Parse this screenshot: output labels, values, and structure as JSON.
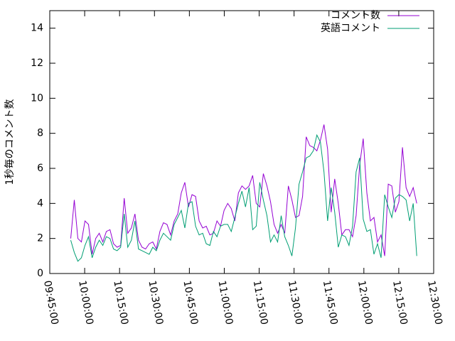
{
  "chart_data": {
    "type": "line",
    "ylabel": "1秒毎のコメント数",
    "x": [
      "09:54:00",
      "09:55:32",
      "09:57:04",
      "09:58:36",
      "10:00:08",
      "10:01:40",
      "10:03:12",
      "10:04:44",
      "10:06:16",
      "10:07:48",
      "10:09:20",
      "10:10:52",
      "10:12:24",
      "10:13:56",
      "10:15:28",
      "10:17:00",
      "10:18:32",
      "10:20:04",
      "10:21:36",
      "10:23:08",
      "10:24:40",
      "10:26:12",
      "10:27:44",
      "10:29:16",
      "10:30:48",
      "10:32:20",
      "10:33:52",
      "10:35:24",
      "10:36:56",
      "10:38:28",
      "10:40:00",
      "10:41:32",
      "10:43:04",
      "10:44:36",
      "10:46:08",
      "10:47:40",
      "10:49:12",
      "10:50:44",
      "10:52:16",
      "10:53:48",
      "10:55:20",
      "10:56:52",
      "10:58:24",
      "10:59:56",
      "11:01:28",
      "11:03:00",
      "11:04:32",
      "11:06:04",
      "11:07:36",
      "11:09:08",
      "11:10:40",
      "11:12:12",
      "11:13:44",
      "11:15:16",
      "11:16:48",
      "11:18:20",
      "11:19:52",
      "11:21:24",
      "11:22:56",
      "11:24:28",
      "11:26:00",
      "11:27:32",
      "11:29:04",
      "11:30:36",
      "11:32:08",
      "11:33:40",
      "11:35:12",
      "11:36:44",
      "11:38:16",
      "11:39:48",
      "11:41:20",
      "11:42:52",
      "11:44:24",
      "11:45:56",
      "11:47:28",
      "11:49:00",
      "11:50:32",
      "11:52:04",
      "11:53:36",
      "11:55:08",
      "11:56:40",
      "11:58:12",
      "11:59:44",
      "12:01:16",
      "12:02:48",
      "12:04:20",
      "12:05:52",
      "12:07:24",
      "12:08:56",
      "12:10:28",
      "12:12:00",
      "12:13:32",
      "12:15:04",
      "12:16:36",
      "12:18:08",
      "12:19:40",
      "12:21:12",
      "12:22:44"
    ],
    "series": [
      {
        "name": "コメント数",
        "color": "#9400d3",
        "values": [
          2.0,
          4.2,
          2.0,
          1.8,
          3.0,
          2.8,
          1.1,
          2.0,
          2.3,
          1.8,
          2.4,
          2.5,
          1.7,
          1.5,
          1.6,
          4.3,
          2.3,
          2.6,
          3.4,
          1.9,
          1.5,
          1.4,
          1.7,
          1.8,
          1.4,
          2.4,
          2.9,
          2.8,
          2.2,
          3.0,
          3.4,
          4.6,
          5.2,
          3.8,
          4.5,
          4.4,
          3.0,
          2.6,
          2.7,
          2.2,
          2.3,
          3.0,
          2.7,
          3.6,
          4.0,
          3.7,
          3.0,
          4.6,
          5.0,
          4.8,
          5.0,
          5.6,
          4.0,
          3.8,
          5.7,
          5.0,
          4.1,
          2.8,
          2.3,
          2.8,
          2.3,
          5.0,
          4.2,
          3.2,
          3.3,
          4.4,
          7.8,
          7.3,
          7.2,
          7.0,
          7.6,
          8.5,
          7.1,
          3.5,
          5.4,
          4.0,
          2.2,
          2.5,
          2.5,
          2.1,
          3.3,
          6.2,
          7.7,
          4.6,
          3.0,
          3.2,
          1.8,
          2.2,
          1.0,
          5.1,
          5.0,
          3.5,
          4.1,
          7.2,
          4.9,
          4.4,
          4.9,
          4.0
        ]
      },
      {
        "name": "英語コメント",
        "color": "#009e73",
        "values": [
          1.9,
          1.2,
          0.7,
          0.9,
          1.6,
          2.1,
          0.9,
          1.5,
          1.9,
          1.6,
          2.1,
          2.0,
          1.4,
          1.3,
          1.5,
          3.4,
          1.5,
          1.9,
          3.0,
          1.4,
          1.3,
          1.2,
          1.1,
          1.5,
          1.3,
          1.9,
          2.3,
          2.1,
          1.9,
          2.8,
          3.2,
          3.6,
          2.6,
          4.0,
          4.1,
          2.7,
          2.2,
          2.3,
          1.7,
          1.6,
          2.4,
          2.1,
          2.7,
          2.8,
          2.8,
          2.4,
          3.2,
          4.0,
          4.7,
          3.8,
          4.9,
          2.5,
          2.7,
          5.2,
          4.2,
          3.3,
          1.8,
          2.2,
          1.8,
          3.3,
          2.1,
          1.6,
          1.0,
          2.6,
          5.1,
          5.8,
          6.6,
          6.7,
          7.0,
          7.9,
          7.5,
          5.8,
          3.0,
          4.9,
          3.5,
          1.5,
          2.2,
          2.1,
          1.6,
          2.7,
          5.8,
          6.6,
          3.1,
          2.4,
          2.5,
          1.1,
          1.7,
          0.9,
          4.5,
          3.8,
          3.2,
          4.3,
          4.5,
          4.4,
          4.2,
          3.0,
          4.0,
          1.0
        ]
      }
    ],
    "xlim": [
      "09:45:00",
      "12:30:00"
    ],
    "xticks": [
      "09:45:00",
      "10:00:00",
      "10:15:00",
      "10:30:00",
      "10:45:00",
      "11:00:00",
      "11:15:00",
      "11:30:00",
      "11:45:00",
      "12:00:00",
      "12:15:00",
      "12:30:00"
    ],
    "ylim": [
      0,
      15
    ],
    "yticks": [
      0,
      2,
      4,
      6,
      8,
      10,
      12,
      14
    ],
    "legend": "top-right"
  }
}
